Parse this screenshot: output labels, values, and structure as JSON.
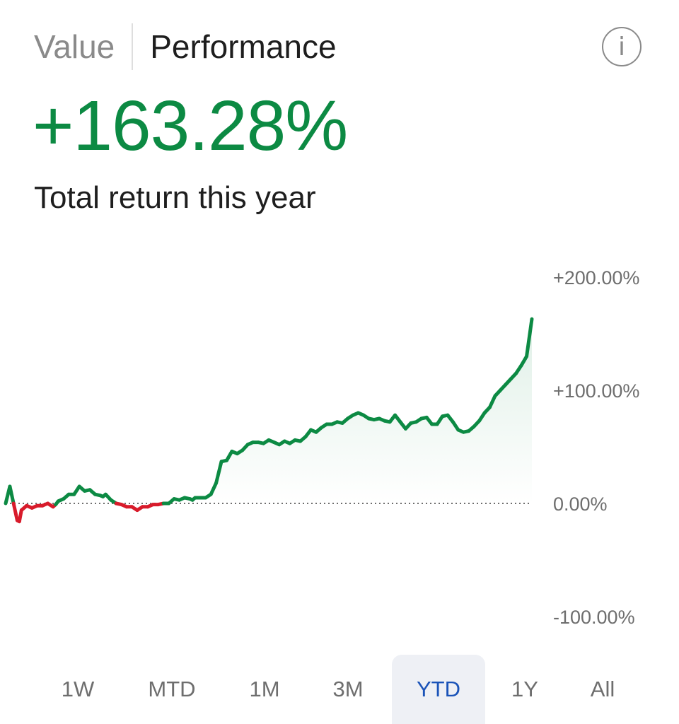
{
  "tabs": [
    {
      "label": "Value",
      "active": false
    },
    {
      "label": "Performance",
      "active": true
    }
  ],
  "info_icon": "info-icon",
  "info_glyph": "i",
  "summary": {
    "total_return": "+163.28%",
    "caption": "Total return this year"
  },
  "colors": {
    "positive": "#0c8a43",
    "negative": "#d81b2b",
    "selected_range_bg": "#eef0f5",
    "selected_range_text": "#1a53b8"
  },
  "chart_data": {
    "type": "line",
    "title": "",
    "xlabel": "",
    "ylabel": "",
    "ylim": [
      -100,
      200
    ],
    "yticks": [
      200,
      100,
      0,
      -100
    ],
    "ytick_labels": [
      "+200.00%",
      "+100.00%",
      "0.00%",
      "-100.00%"
    ],
    "baseline": 0,
    "grid": false,
    "x": [
      0,
      0.8,
      1.5,
      2.2,
      2.6,
      3,
      4,
      5,
      6,
      7,
      8,
      9,
      9.5,
      10,
      11,
      12,
      13,
      14,
      15,
      16,
      17,
      18,
      18.5,
      19,
      20,
      21,
      22,
      23,
      24,
      25,
      26,
      27,
      28,
      29,
      30,
      31,
      32,
      33,
      34,
      35,
      35.5,
      36,
      37,
      38,
      39,
      40,
      41,
      42,
      43,
      44,
      45,
      46,
      47,
      48,
      49,
      50,
      51,
      52,
      53,
      54,
      55,
      56,
      57,
      58,
      59,
      60,
      61,
      62,
      63,
      64,
      65,
      66,
      67,
      68,
      69,
      70,
      71,
      72,
      73,
      74,
      75,
      76,
      77,
      78,
      79,
      80,
      81,
      82,
      83,
      84,
      85,
      86,
      87,
      88,
      89,
      90,
      91,
      92,
      93,
      94,
      95,
      96,
      97,
      98,
      99,
      100
    ],
    "values": [
      0,
      15,
      0,
      -15,
      -16,
      -6,
      -2,
      -4,
      -2,
      -2,
      0,
      -3,
      -1,
      2,
      4,
      8,
      8,
      15,
      11,
      12,
      8,
      7,
      6,
      8,
      3,
      0,
      -1,
      -3,
      -3,
      -6,
      -3,
      -3,
      -1,
      -1,
      0,
      0,
      4,
      3,
      5,
      4,
      3,
      5,
      5,
      5,
      8,
      18,
      37,
      38,
      46,
      44,
      47,
      52,
      54,
      54,
      53,
      56,
      54,
      52,
      55,
      53,
      56,
      55,
      59,
      65,
      63,
      67,
      70,
      70,
      72,
      71,
      75,
      78,
      80,
      78,
      75,
      74,
      75,
      73,
      72,
      78,
      72,
      66,
      71,
      72,
      75,
      76,
      70,
      70,
      77,
      78,
      72,
      65,
      63,
      64,
      68,
      73,
      80,
      85,
      95,
      100,
      105,
      110,
      115,
      122,
      130,
      163
    ]
  },
  "ranges": [
    {
      "label": "1W",
      "selected": false
    },
    {
      "label": "MTD",
      "selected": false
    },
    {
      "label": "1M",
      "selected": false
    },
    {
      "label": "3M",
      "selected": false
    },
    {
      "label": "YTD",
      "selected": true
    },
    {
      "label": "1Y",
      "selected": false
    },
    {
      "label": "All",
      "selected": false
    }
  ]
}
